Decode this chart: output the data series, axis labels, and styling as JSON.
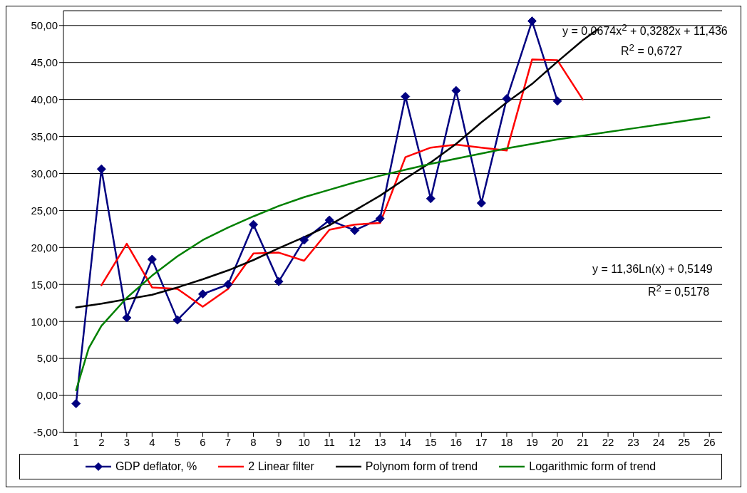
{
  "chart_data": {
    "type": "line",
    "xlim": [
      0.5,
      26.5
    ],
    "xticks": [
      1,
      2,
      3,
      4,
      5,
      6,
      7,
      8,
      9,
      10,
      11,
      12,
      13,
      14,
      15,
      16,
      17,
      18,
      19,
      20,
      21,
      22,
      23,
      24,
      25,
      26
    ],
    "ylim": [
      -5,
      52
    ],
    "yticks": [
      {
        "value": -5,
        "label": "-5,00"
      },
      {
        "value": 0,
        "label": "0,00"
      },
      {
        "value": 5,
        "label": "5,00"
      },
      {
        "value": 10,
        "label": "10,00"
      },
      {
        "value": 15,
        "label": "15,00"
      },
      {
        "value": 20,
        "label": "20,00"
      },
      {
        "value": 25,
        "label": "25,00"
      },
      {
        "value": 30,
        "label": "30,00"
      },
      {
        "value": 35,
        "label": "35,00"
      },
      {
        "value": 40,
        "label": "40,00"
      },
      {
        "value": 45,
        "label": "45,00"
      },
      {
        "value": 50,
        "label": "50,00"
      }
    ],
    "grid": "y",
    "legend": "bottom",
    "line_style": "solid",
    "series": [
      {
        "name": "GDP deflator, %",
        "color": "#000080",
        "marker": "diamond",
        "x": [
          1,
          2,
          3,
          4,
          5,
          6,
          7,
          8,
          9,
          10,
          11,
          12,
          13,
          14,
          15,
          16,
          17,
          18,
          19,
          20
        ],
        "values": [
          -1.1,
          30.6,
          10.5,
          18.4,
          10.2,
          13.7,
          15.0,
          23.1,
          15.4,
          21.0,
          23.7,
          22.3,
          23.9,
          40.4,
          26.6,
          41.2,
          26.0,
          40.1,
          50.6,
          39.8
        ]
      },
      {
        "name": "2 Linear filter",
        "color": "#ff0000",
        "marker": "none",
        "x": [
          2,
          3,
          4,
          5,
          6,
          7,
          8,
          9,
          10,
          11,
          12,
          13,
          14,
          15,
          16,
          17,
          18,
          19,
          20,
          21
        ],
        "values": [
          14.9,
          20.5,
          14.6,
          14.4,
          12.0,
          14.4,
          19.2,
          19.3,
          18.2,
          22.4,
          23.1,
          23.3,
          32.2,
          33.5,
          33.9,
          33.5,
          33.1,
          45.4,
          45.3,
          40.0
        ]
      },
      {
        "name": "Polynom form of trend",
        "color": "#000000",
        "marker": "none",
        "x": [
          1,
          2,
          3,
          4,
          5,
          6,
          7,
          8,
          9,
          10,
          11,
          12,
          13,
          14,
          15,
          16,
          17,
          18,
          19,
          20,
          21,
          21.6
        ],
        "values": [
          11.9,
          12.4,
          13.0,
          13.6,
          14.6,
          15.7,
          16.9,
          18.3,
          19.9,
          21.4,
          23.0,
          25.0,
          27.0,
          29.3,
          31.5,
          34.0,
          36.9,
          39.6,
          42.1,
          45.1,
          48.0,
          49.5
        ]
      },
      {
        "name": "Logarithmic form of trend",
        "color": "#008000",
        "marker": "none",
        "x": [
          1,
          1.5,
          2,
          3,
          4,
          5,
          6,
          7,
          8,
          9,
          10,
          11,
          12,
          13,
          14,
          15,
          16,
          17,
          18,
          19,
          20,
          21,
          22,
          23,
          24,
          25,
          26
        ],
        "values": [
          0.7,
          6.4,
          9.4,
          13.2,
          16.2,
          18.8,
          21.0,
          22.7,
          24.2,
          25.6,
          26.8,
          27.8,
          28.8,
          29.7,
          30.5,
          31.3,
          32.0,
          32.7,
          33.4,
          34.0,
          34.6,
          35.1,
          35.6,
          36.1,
          36.6,
          37.1,
          37.6
        ]
      }
    ],
    "annotations": [
      "y = 0,0674x$^{2}$ + 0,3282x + 11,436",
      "R$^{2}$ = 0,6727",
      "y = 11,36Ln(x) + 0,5149",
      "R$^{2}$ = 0,5178"
    ]
  }
}
